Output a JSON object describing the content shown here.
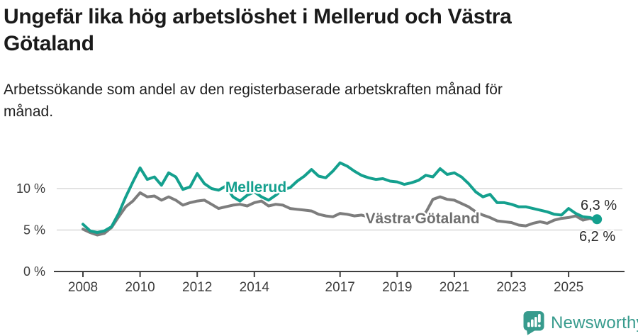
{
  "header": {
    "title_lines": [
      "Ungefär lika hög arbetslöshet i Mellerud och Västra",
      "Götaland"
    ],
    "subtitle_lines": [
      "Arbetssökande som andel av den registerbaserade arbetskraften månad för",
      "månad."
    ]
  },
  "logo": {
    "brand": "Newsworthy",
    "color": "#379b8d",
    "icon": "newsworthy-speech-bubble-bar-chart-icon"
  },
  "chart_data": {
    "type": "line",
    "title": "Ungefär lika hög arbetslöshet i Mellerud och Västra Götaland",
    "subtitle": "Arbetssökande som andel av den registerbaserade arbetskraften månad för månad.",
    "xlabel": "",
    "ylabel": "",
    "grid": "horizontal",
    "legend_position": "inline-labels",
    "x_axis": {
      "ticks": [
        2008,
        2010,
        2012,
        2014,
        2017,
        2019,
        2021,
        2023,
        2025
      ],
      "tick_labels": [
        "2008",
        "2010",
        "2012",
        "2014",
        "2017",
        "2019",
        "2021",
        "2023",
        "2025"
      ],
      "xlim": [
        2007.6,
        2026.4
      ]
    },
    "y_axis": {
      "ticks": [
        0,
        5,
        10
      ],
      "tick_labels": [
        "0 %",
        "5 %",
        "10 %"
      ],
      "gridlines": [
        5,
        10
      ],
      "ylim": [
        0,
        14
      ]
    },
    "x": [
      2008,
      2008.25,
      2008.5,
      2008.75,
      2009,
      2009.25,
      2009.5,
      2009.75,
      2010,
      2010.25,
      2010.5,
      2010.75,
      2011,
      2011.25,
      2011.5,
      2011.75,
      2012,
      2012.25,
      2012.5,
      2012.75,
      2013,
      2013.25,
      2013.5,
      2013.75,
      2014,
      2014.25,
      2014.5,
      2014.75,
      2015,
      2015.25,
      2015.5,
      2015.75,
      2016,
      2016.25,
      2016.5,
      2016.75,
      2017,
      2017.25,
      2017.5,
      2017.75,
      2018,
      2018.25,
      2018.5,
      2018.75,
      2019,
      2019.25,
      2019.5,
      2019.75,
      2020,
      2020.25,
      2020.5,
      2020.75,
      2021,
      2021.25,
      2021.5,
      2021.75,
      2022,
      2022.25,
      2022.5,
      2022.75,
      2023,
      2023.25,
      2023.5,
      2023.75,
      2024,
      2024.25,
      2024.5,
      2024.75,
      2025,
      2025.25,
      2025.5,
      2025.75,
      2025.92
    ],
    "series": [
      {
        "name": "Mellerud",
        "color": "#14a08e",
        "end_label": "6,3 %",
        "end_value": 6.3,
        "values": [
          5.7,
          4.9,
          4.7,
          4.9,
          5.4,
          7.0,
          9.0,
          10.8,
          12.5,
          11.1,
          11.4,
          10.4,
          11.9,
          11.4,
          9.9,
          10.2,
          11.8,
          10.6,
          10.0,
          9.8,
          10.3,
          9.0,
          8.5,
          9.2,
          9.6,
          9.0,
          8.6,
          9.2,
          9.9,
          10.1,
          10.9,
          11.5,
          12.3,
          11.5,
          11.3,
          12.1,
          13.1,
          12.7,
          12.1,
          11.6,
          11.3,
          11.1,
          11.2,
          10.9,
          10.8,
          10.5,
          10.7,
          11.0,
          11.6,
          11.4,
          12.4,
          11.7,
          11.9,
          11.4,
          10.6,
          9.6,
          9.0,
          9.3,
          8.3,
          8.3,
          8.1,
          7.8,
          7.8,
          7.6,
          7.4,
          7.2,
          6.9,
          6.8,
          7.6,
          7.0,
          6.6,
          6.5,
          6.3
        ]
      },
      {
        "name": "Västra Götaland",
        "color": "#7d7d7d",
        "end_label": "6,2 %",
        "end_value": 6.2,
        "values": [
          5.1,
          4.7,
          4.4,
          4.6,
          5.3,
          6.6,
          7.8,
          8.5,
          9.5,
          9.0,
          9.1,
          8.6,
          9.0,
          8.6,
          8.0,
          8.3,
          8.5,
          8.6,
          8.1,
          7.6,
          7.8,
          8.0,
          8.1,
          7.9,
          8.3,
          8.5,
          7.9,
          8.1,
          8.0,
          7.6,
          7.5,
          7.4,
          7.3,
          6.9,
          6.7,
          6.6,
          7.0,
          6.9,
          6.7,
          6.8,
          6.6,
          6.4,
          6.3,
          6.4,
          6.3,
          6.4,
          6.5,
          6.7,
          7.1,
          8.7,
          9.0,
          8.7,
          8.6,
          8.2,
          7.8,
          7.2,
          6.8,
          6.5,
          6.1,
          6.0,
          5.9,
          5.6,
          5.5,
          5.8,
          6.0,
          5.8,
          6.2,
          6.4,
          6.5,
          6.7,
          6.2,
          6.4,
          6.2
        ]
      }
    ]
  }
}
